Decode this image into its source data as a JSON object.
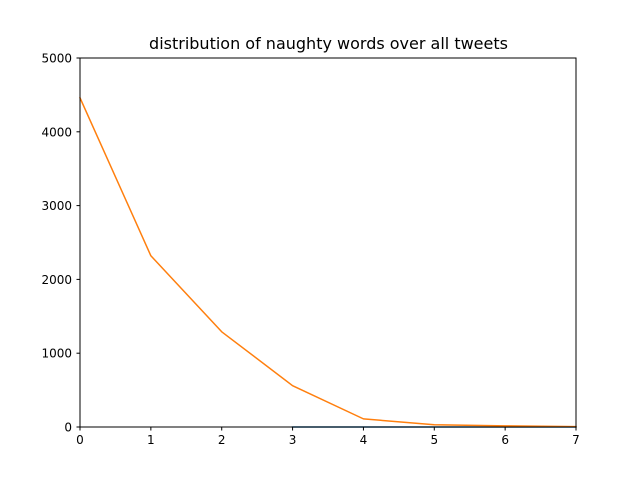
{
  "chart_data": {
    "type": "line",
    "title": "distribution of naughty words over all tweets",
    "xlabel": "",
    "ylabel": "",
    "xlim": [
      0,
      7
    ],
    "ylim": [
      0,
      5000
    ],
    "x_ticks": [
      0,
      1,
      2,
      3,
      4,
      5,
      6,
      7
    ],
    "y_ticks": [
      0,
      1000,
      2000,
      3000,
      4000,
      5000
    ],
    "x_tick_labels": [
      "0",
      "1",
      "2",
      "3",
      "4",
      "5",
      "6",
      "7"
    ],
    "y_tick_labels": [
      "0",
      "1000",
      "2000",
      "3000",
      "4000",
      "5000"
    ],
    "grid": false,
    "legend": "none",
    "series": [
      {
        "color": "#1f77b4",
        "x": [
          3,
          4,
          5,
          6,
          7
        ],
        "y": [
          0,
          0,
          0,
          0,
          0
        ]
      },
      {
        "color": "#ff7f0e",
        "x": [
          0,
          1,
          2,
          3,
          4,
          5,
          6,
          7
        ],
        "y": [
          4460,
          2320,
          1290,
          560,
          110,
          30,
          15,
          5
        ]
      }
    ]
  }
}
